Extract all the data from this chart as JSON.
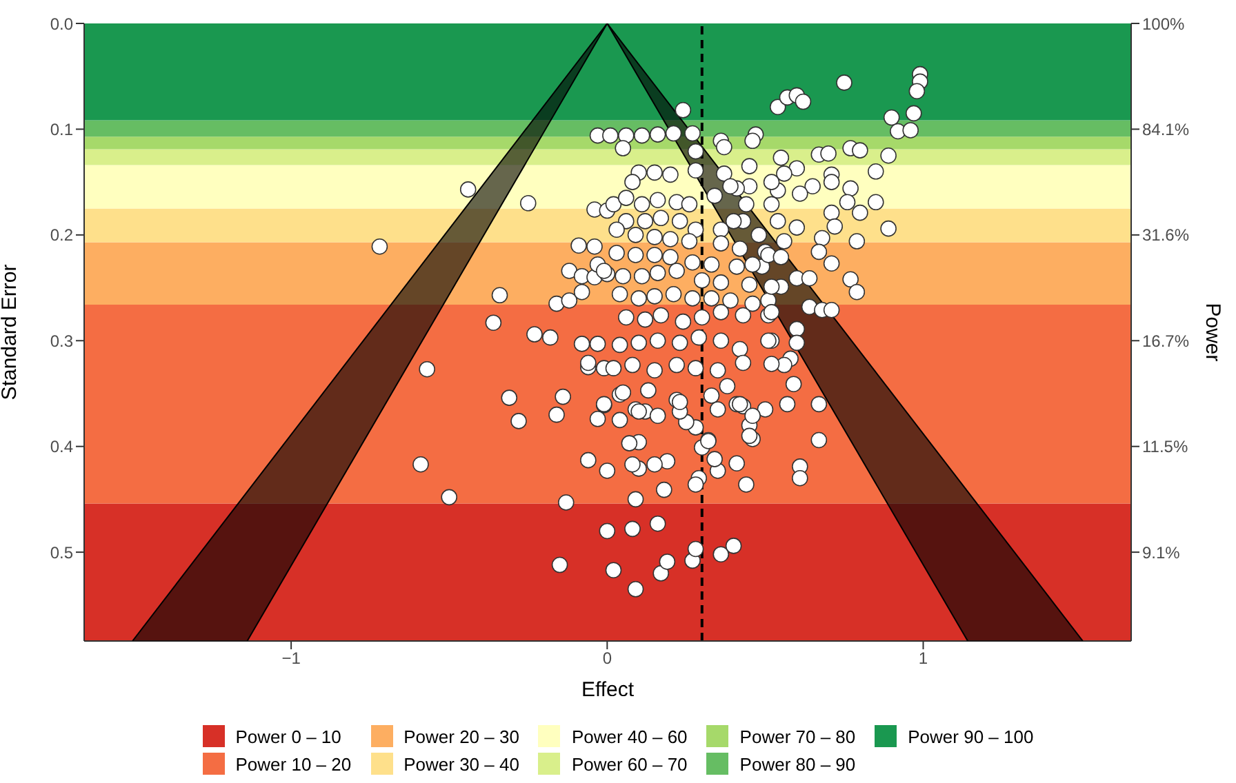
{
  "chart_data": {
    "type": "scatter",
    "xlabel": "Effect",
    "ylabel": "Standard Error",
    "y2label": "Power",
    "xlim": [
      -1.655,
      1.658
    ],
    "xticks": [
      {
        "value": -1,
        "label": "−1"
      },
      0,
      1
    ],
    "ylim": [
      0.584,
      0
    ],
    "yticks": [
      {
        "value": 0,
        "label": "0.0"
      },
      0.1,
      0.2,
      0.3,
      0.4,
      0.5
    ],
    "y2_categories": [
      "100%",
      "84.1%",
      "31.6%",
      "16.7%",
      "11.5%",
      "9.1%"
    ],
    "grid": false,
    "legend": "bottom",
    "marker": "circle",
    "bands": [
      {
        "axis": "y",
        "from": 0.454,
        "to": 0.584,
        "label": "Power 0 – 10",
        "color": "#d73027"
      },
      {
        "axis": "y",
        "from": 0.266,
        "to": 0.454,
        "label": "Power 10 – 20",
        "color": "#f46d43"
      },
      {
        "axis": "y",
        "from": 0.207,
        "to": 0.266,
        "label": "Power 20 – 30",
        "color": "#fdae61"
      },
      {
        "axis": "y",
        "from": 0.175,
        "to": 0.207,
        "label": "Power 30 – 40",
        "color": "#fee08b"
      },
      {
        "axis": "y",
        "from": 0.134,
        "to": 0.175,
        "label": "Power 40 – 60",
        "color": "#ffffbf"
      },
      {
        "axis": "y",
        "from": 0.119,
        "to": 0.134,
        "label": "Power 60 – 70",
        "color": "#d9ef8b"
      },
      {
        "axis": "y",
        "from": 0.107,
        "to": 0.119,
        "label": "Power 70 – 80",
        "color": "#a6d96a"
      },
      {
        "axis": "y",
        "from": 0.0916,
        "to": 0.107,
        "label": "Power 80 – 90",
        "color": "#66bd63"
      },
      {
        "axis": "y",
        "from": 0,
        "to": 0.0916,
        "label": "Power 90 – 100",
        "color": "#1a9850"
      }
    ],
    "ref_lines": [
      {
        "axis": "x",
        "value": 0.3,
        "color": "#000000",
        "line_style": "dashed"
      }
    ],
    "series": [
      {
        "type": "line",
        "color": "#000000",
        "line_style": "solid",
        "marker": "none",
        "x": [
          0,
          -1.502
        ],
        "values": [
          0,
          0.584
        ]
      },
      {
        "type": "line",
        "color": "#000000",
        "line_style": "solid",
        "marker": "none",
        "x": [
          0,
          -1.139
        ],
        "values": [
          0,
          0.584
        ]
      },
      {
        "type": "line",
        "color": "#000000",
        "line_style": "solid",
        "marker": "none",
        "x": [
          0,
          1.141
        ],
        "values": [
          0,
          0.584
        ]
      },
      {
        "type": "line",
        "color": "#000000",
        "line_style": "solid",
        "marker": "none",
        "x": [
          0,
          1.505
        ],
        "values": [
          0,
          0.584
        ]
      },
      {
        "color": "#ffffff",
        "x": [
          -0.72,
          -0.44,
          -0.25,
          -0.34,
          -0.36,
          -0.23,
          -0.18,
          -0.57,
          -0.31,
          -0.28,
          -0.14,
          -0.16,
          -0.59,
          -0.5,
          -0.13,
          -0.15,
          0,
          0.02,
          -0.09,
          -0.04,
          -0.12,
          -0.08,
          -0.04,
          -0.03,
          0,
          -0.16,
          -0.12,
          -0.08,
          -0.08,
          -0.03,
          -0.06,
          -0.01,
          -0.01,
          -0.03,
          -0.06,
          0,
          -0.04,
          0,
          -0.03,
          0.01,
          0.24,
          0.54,
          0.57,
          0.6,
          0.62,
          0.75,
          0.99,
          0.99,
          0.98,
          0.9,
          0.97,
          0.92,
          0.96,
          0.06,
          0.11,
          0.16,
          0.21,
          0.27,
          0.05,
          0.28,
          0.28,
          0.36,
          0.37,
          0.47,
          0.46,
          0.55,
          0.67,
          0.7,
          0.77,
          0.8,
          0.89,
          0.85,
          0.45,
          0.37,
          0.6,
          0.56,
          0.71,
          0.71,
          0.77,
          0.85,
          0.89,
          0.76,
          0.8,
          0.71,
          0.72,
          0.79,
          0.68,
          0.67,
          0.71,
          0.77,
          0.79,
          0.6,
          0.64,
          0.64,
          0.68,
          0.71,
          0.6,
          0.65,
          0.61,
          0.54,
          0.52,
          0.45,
          0.41,
          0.52,
          0.54,
          0.56,
          0.44,
          0.43,
          0.48,
          0.5,
          0.49,
          0.55,
          0.51,
          0.51,
          0.6,
          0.6,
          0.52,
          0.58,
          0.56,
          0.52,
          0.59,
          0.57,
          0.67,
          0.67,
          0.61,
          0.61,
          0.44,
          0.41,
          0.35,
          0.34,
          0.29,
          0.28,
          0.3,
          0.32,
          0.45,
          0.46,
          0.43,
          0.41,
          0.5,
          0.38,
          0.33,
          0.28,
          0.25,
          0.18,
          0.09,
          0.19,
          0.15,
          0.1,
          0.08,
          0.1,
          0.07,
          0.04,
          0.04,
          0.09,
          0.12,
          0.16,
          0.22,
          0.23,
          0.13,
          0.08,
          0.16,
          0.09,
          0.17,
          0.19,
          0.27,
          0.28,
          0.36,
          0.4,
          0.1,
          0.15,
          0.2,
          0.08,
          0.02,
          0.06,
          0.11,
          0.16,
          0.22,
          0.26,
          0.34,
          0.39,
          0.06,
          0.12,
          0.17,
          0.23,
          0.28,
          0.36,
          0.4,
          0.03,
          0.09,
          0.15,
          0.2,
          0.26,
          0.36,
          0.42,
          0.03,
          0.09,
          0.15,
          0.2,
          0.27,
          0.33,
          0.41,
          0.46,
          0.51,
          0.55,
          -0.01,
          0.05,
          0.11,
          0.16,
          0.22,
          0.3,
          0.36,
          0.45,
          0.52,
          0.04,
          0.1,
          0.15,
          0.21,
          0.27,
          0.33,
          0.39,
          0.46,
          0.06,
          0.12,
          0.17,
          0.24,
          0.3,
          0.36,
          0.43,
          0.52,
          0.04,
          0.1,
          0.16,
          0.23,
          0.29,
          0.36,
          0.42,
          0.51,
          -0.06,
          0.02,
          0.08,
          0.15,
          0.22,
          0.28,
          0.35,
          0.43,
          -0.01,
          0.05,
          0.1,
          0.23,
          0.32,
          0.35,
          0.42,
          0.46,
          0.45
        ],
        "values": [
          0.211,
          0.157,
          0.17,
          0.257,
          0.283,
          0.294,
          0.297,
          0.327,
          0.354,
          0.376,
          0.353,
          0.37,
          0.417,
          0.448,
          0.453,
          0.512,
          0.48,
          0.517,
          0.21,
          0.211,
          0.234,
          0.239,
          0.24,
          0.228,
          0.237,
          0.265,
          0.262,
          0.254,
          0.303,
          0.303,
          0.325,
          0.326,
          0.361,
          0.374,
          0.413,
          0.423,
          0.176,
          0.177,
          0.106,
          0.106,
          0.082,
          0.079,
          0.07,
          0.068,
          0.074,
          0.056,
          0.048,
          0.055,
          0.064,
          0.089,
          0.085,
          0.102,
          0.101,
          0.106,
          0.106,
          0.105,
          0.104,
          0.104,
          0.118,
          0.121,
          0.139,
          0.111,
          0.117,
          0.105,
          0.111,
          0.127,
          0.124,
          0.123,
          0.118,
          0.12,
          0.125,
          0.14,
          0.135,
          0.142,
          0.137,
          0.142,
          0.143,
          0.15,
          0.156,
          0.169,
          0.194,
          0.169,
          0.179,
          0.179,
          0.192,
          0.206,
          0.203,
          0.216,
          0.227,
          0.242,
          0.254,
          0.241,
          0.241,
          0.268,
          0.271,
          0.271,
          0.193,
          0.154,
          0.161,
          0.158,
          0.15,
          0.154,
          0.156,
          0.171,
          0.187,
          0.206,
          0.171,
          0.187,
          0.2,
          0.216,
          0.23,
          0.249,
          0.262,
          0.276,
          0.289,
          0.302,
          0.3,
          0.317,
          0.323,
          0.322,
          0.341,
          0.36,
          0.36,
          0.394,
          0.419,
          0.43,
          0.436,
          0.416,
          0.423,
          0.412,
          0.43,
          0.436,
          0.401,
          0.394,
          0.38,
          0.393,
          0.362,
          0.36,
          0.365,
          0.343,
          0.352,
          0.382,
          0.377,
          0.441,
          0.45,
          0.414,
          0.417,
          0.421,
          0.417,
          0.396,
          0.397,
          0.375,
          0.351,
          0.365,
          0.367,
          0.371,
          0.356,
          0.367,
          0.347,
          0.478,
          0.473,
          0.535,
          0.52,
          0.509,
          0.508,
          0.497,
          0.502,
          0.494,
          0.141,
          0.141,
          0.143,
          0.15,
          0.171,
          0.165,
          0.171,
          0.167,
          0.169,
          0.171,
          0.163,
          0.154,
          0.187,
          0.187,
          0.184,
          0.187,
          0.195,
          0.195,
          0.187,
          0.195,
          0.2,
          0.202,
          0.204,
          0.206,
          0.208,
          0.213,
          0.217,
          0.219,
          0.219,
          0.221,
          0.226,
          0.228,
          0.23,
          0.228,
          0.219,
          0.221,
          0.234,
          0.239,
          0.239,
          0.236,
          0.234,
          0.243,
          0.245,
          0.247,
          0.249,
          0.256,
          0.26,
          0.258,
          0.256,
          0.26,
          0.26,
          0.262,
          0.265,
          0.278,
          0.28,
          0.276,
          0.282,
          0.278,
          0.273,
          0.276,
          0.273,
          0.304,
          0.302,
          0.3,
          0.302,
          0.297,
          0.3,
          0.308,
          0.3,
          0.321,
          0.326,
          0.323,
          0.328,
          0.323,
          0.326,
          0.328,
          0.321,
          0.36,
          0.349,
          0.367,
          0.358,
          0.395,
          0.365,
          0.36,
          0.371,
          0.39
        ]
      }
    ]
  }
}
